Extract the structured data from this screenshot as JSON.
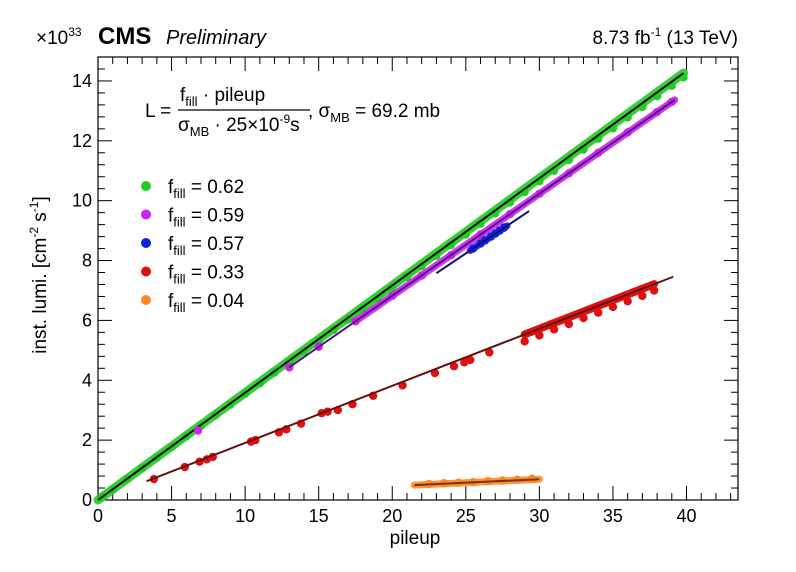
{
  "chart_data": {
    "type": "scatter",
    "header": {
      "exponent_prefix": "×10",
      "exponent": "33",
      "experiment": "CMS",
      "status": "Preliminary",
      "lumi_value": "8.73 fb",
      "lumi_exponent": "-1",
      "lumi_energy": " (13 TeV)"
    },
    "xlabel": "pileup",
    "ylabel": "inst. lumi. [cm",
    "ylabel_exp1": "-2",
    "ylabel_mid": " s",
    "ylabel_exp2": "-1",
    "ylabel_end": "]",
    "xlim": [
      0,
      43.5
    ],
    "ylim": [
      0,
      14.8
    ],
    "xticks": [
      0,
      5,
      10,
      15,
      20,
      25,
      30,
      35,
      40
    ],
    "yticks": [
      0,
      2,
      4,
      6,
      8,
      10,
      12,
      14
    ],
    "formula": {
      "lhs": "L = ",
      "num_f": "f",
      "num_f_sub": "fill",
      "num_rest": " · pileup",
      "den_sigma": "σ",
      "den_sigma_sub": "MB",
      "den_rest": " · 25×10",
      "den_exp": "-9",
      "den_unit": "s",
      "comma": ", σ",
      "sigma_sub": "MB",
      "sigma_val": " = 69.2 mb"
    },
    "series": [
      {
        "name": "f_fill = 0.62",
        "prefix": "f",
        "sub": "fill",
        "value_text": " = 0.62",
        "f_fill": 0.62,
        "color": "#22cc22",
        "fit_color": "#111111",
        "x_range": [
          0,
          39.8
        ],
        "fit_range": [
          0,
          39.8
        ],
        "points": [
          [
            0.3,
            0.11
          ],
          [
            1,
            0.35
          ],
          [
            2,
            0.71
          ],
          [
            3,
            1.06
          ],
          [
            4,
            1.42
          ],
          [
            5,
            1.77
          ],
          [
            6,
            2.13
          ],
          [
            7,
            2.48
          ],
          [
            8,
            2.84
          ],
          [
            9,
            3.19
          ],
          [
            10,
            3.55
          ],
          [
            11,
            3.9
          ],
          [
            12,
            4.26
          ],
          [
            13,
            4.61
          ],
          [
            14,
            4.97
          ],
          [
            15,
            5.32
          ],
          [
            16,
            5.68
          ],
          [
            17,
            6.03
          ],
          [
            18,
            6.39
          ],
          [
            19,
            6.74
          ],
          [
            20,
            7.1
          ],
          [
            21,
            7.45
          ],
          [
            22,
            7.81
          ],
          [
            23,
            8.16
          ],
          [
            24,
            8.52
          ],
          [
            25,
            8.87
          ],
          [
            26,
            9.23
          ],
          [
            27,
            9.58
          ],
          [
            28,
            9.94
          ],
          [
            29,
            10.29
          ],
          [
            30,
            10.65
          ],
          [
            31,
            11.0
          ],
          [
            32,
            11.36
          ],
          [
            33,
            11.71
          ],
          [
            34,
            12.07
          ],
          [
            35,
            12.42
          ],
          [
            36,
            12.78
          ],
          [
            37,
            13.13
          ],
          [
            38,
            13.49
          ],
          [
            39,
            13.84
          ],
          [
            39.8,
            14.12
          ]
        ]
      },
      {
        "name": "f_fill = 0.59",
        "prefix": "f",
        "sub": "fill",
        "value_text": " = 0.59",
        "f_fill": 0.59,
        "color": "#cc22ee",
        "fit_color": "#551188",
        "x_range": [
          6.8,
          39.2
        ],
        "fit_range": [
          13,
          39.2
        ],
        "points": [
          [
            6.8,
            2.32
          ],
          [
            13,
            4.43
          ],
          [
            15,
            5.12
          ],
          [
            17.5,
            5.97
          ],
          [
            20,
            6.82
          ],
          [
            22,
            7.5
          ],
          [
            24,
            8.18
          ],
          [
            26,
            8.87
          ],
          [
            28,
            9.55
          ],
          [
            30,
            10.23
          ],
          [
            32,
            10.91
          ],
          [
            34,
            11.6
          ],
          [
            36,
            12.28
          ],
          [
            38,
            12.96
          ],
          [
            39,
            13.3
          ]
        ]
      },
      {
        "name": "f_fill = 0.57",
        "prefix": "f",
        "sub": "fill",
        "value_text": " = 0.57",
        "f_fill": 0.57,
        "color": "#1122dd",
        "fit_color": "#111166",
        "x_range": [
          23,
          29.3
        ],
        "fit_range": [
          23,
          29.3
        ],
        "points": [
          [
            25.5,
            8.4
          ],
          [
            26,
            8.57
          ],
          [
            26.3,
            8.67
          ],
          [
            26.7,
            8.8
          ],
          [
            27,
            8.9
          ],
          [
            27.3,
            9.0
          ],
          [
            27.6,
            9.1
          ]
        ]
      },
      {
        "name": "f_fill = 0.33",
        "prefix": "f",
        "sub": "fill",
        "value_text": " = 0.33",
        "f_fill": 0.33,
        "color": "#dd1111",
        "fit_color": "#661111",
        "x_range": [
          3.3,
          39.1
        ],
        "fit_range": [
          3.3,
          39.1
        ],
        "points": [
          [
            3.8,
            0.7
          ],
          [
            5.9,
            1.1
          ],
          [
            6.9,
            1.28
          ],
          [
            7.4,
            1.36
          ],
          [
            7.8,
            1.44
          ],
          [
            10.4,
            1.95
          ],
          [
            10.7,
            2.0
          ],
          [
            12.3,
            2.26
          ],
          [
            12.8,
            2.36
          ],
          [
            13.8,
            2.55
          ],
          [
            15.2,
            2.9
          ],
          [
            15.6,
            2.95
          ],
          [
            16.3,
            3.0
          ],
          [
            17.3,
            3.2
          ],
          [
            18.7,
            3.48
          ],
          [
            20.7,
            3.83
          ],
          [
            22.9,
            4.24
          ],
          [
            24.2,
            4.47
          ],
          [
            24.9,
            4.6
          ],
          [
            25.3,
            4.68
          ],
          [
            26.6,
            4.93
          ],
          [
            29,
            5.3
          ],
          [
            30,
            5.5
          ],
          [
            31,
            5.7
          ],
          [
            32,
            5.88
          ],
          [
            33,
            6.08
          ],
          [
            34,
            6.26
          ],
          [
            35,
            6.45
          ],
          [
            36,
            6.64
          ],
          [
            37,
            6.82
          ],
          [
            37.8,
            7.0
          ]
        ]
      },
      {
        "name": "f_fill = 0.04",
        "prefix": "f",
        "sub": "fill",
        "value_text": " = 0.04",
        "f_fill": 0.04,
        "color": "#ff8822",
        "fit_color": "#773311",
        "x_range": [
          21.5,
          30
        ],
        "fit_range": [
          21.5,
          30
        ],
        "points": [
          [
            22.5,
            0.53
          ],
          [
            23.5,
            0.56
          ],
          [
            24.5,
            0.58
          ],
          [
            25.5,
            0.6
          ],
          [
            26.5,
            0.63
          ],
          [
            27.5,
            0.65
          ],
          [
            28.5,
            0.68
          ],
          [
            29.5,
            0.71
          ]
        ]
      }
    ]
  }
}
